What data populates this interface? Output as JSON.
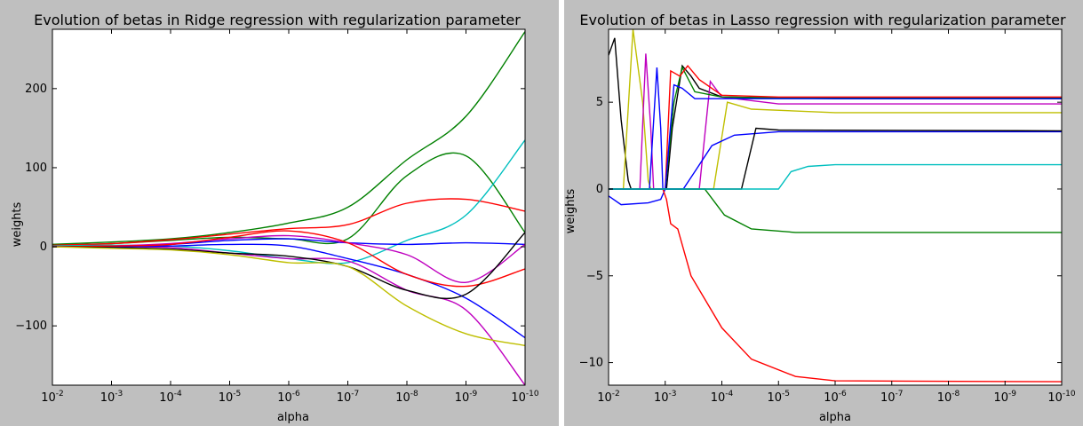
{
  "chart_data": [
    {
      "type": "line",
      "title": "Evolution of betas in Ridge regression with regularization parameter",
      "xlabel": "alpha",
      "ylabel": "weights",
      "xscale": "log",
      "xaxis_direction": "reversed",
      "xlim": [
        0.01,
        1e-10
      ],
      "ylim": [
        -175,
        275
      ],
      "xticks": [
        0.01,
        0.001,
        0.0001,
        1e-05,
        1e-06,
        1e-07,
        1e-08,
        1e-09,
        1e-10
      ],
      "xtick_exponents": [
        "-2",
        "-3",
        "-4",
        "-5",
        "-6",
        "-7",
        "-8",
        "-9",
        "-10"
      ],
      "yticks": [
        -100,
        0,
        100,
        200
      ],
      "ytick_labels": [
        "−100",
        "0",
        "100",
        "200"
      ],
      "grid": false,
      "legend": "none",
      "x": [
        0.01,
        0.001,
        0.0001,
        1e-05,
        1e-06,
        1e-07,
        1e-08,
        1e-09,
        1e-10
      ],
      "series": [
        {
          "color": "#008000",
          "values": [
            3,
            6,
            10,
            18,
            30,
            50,
            110,
            165,
            272
          ]
        },
        {
          "color": "#008000",
          "values": [
            2,
            4,
            8,
            12,
            10,
            10,
            90,
            115,
            18
          ]
        },
        {
          "color": "#ff0000",
          "values": [
            2,
            4,
            9,
            16,
            23,
            28,
            55,
            60,
            45
          ]
        },
        {
          "color": "#00bfbf",
          "values": [
            1,
            2,
            1,
            -5,
            -15,
            -20,
            8,
            40,
            135
          ]
        },
        {
          "color": "#0000ff",
          "values": [
            0,
            1,
            3,
            8,
            10,
            5,
            3,
            5,
            3
          ]
        },
        {
          "color": "#bf00bf",
          "values": [
            0,
            0,
            -1,
            -8,
            -15,
            -18,
            -55,
            -80,
            -175
          ]
        },
        {
          "color": "#0000ff",
          "values": [
            0,
            0,
            1,
            3,
            1,
            -15,
            -35,
            -65,
            -115
          ]
        },
        {
          "color": "#bf00bf",
          "values": [
            0,
            1,
            4,
            10,
            14,
            5,
            -10,
            -45,
            3
          ]
        },
        {
          "color": "#ff0000",
          "values": [
            0,
            1,
            3,
            12,
            20,
            5,
            -35,
            -50,
            -28
          ]
        },
        {
          "color": "#000000",
          "values": [
            0,
            -1,
            -3,
            -8,
            -12,
            -25,
            -55,
            -60,
            18
          ]
        },
        {
          "color": "#bfbf00",
          "values": [
            0,
            -2,
            -4,
            -10,
            -20,
            -25,
            -75,
            -110,
            -125
          ]
        }
      ]
    },
    {
      "type": "line",
      "title": "Evolution of betas in Lasso regression with regularization parameter",
      "xlabel": "alpha",
      "ylabel": "weights",
      "xscale": "log",
      "xaxis_direction": "reversed",
      "xlim": [
        0.01,
        1e-10
      ],
      "ylim": [
        -11.3,
        9.2
      ],
      "xticks": [
        0.01,
        0.001,
        0.0001,
        1e-05,
        1e-06,
        1e-07,
        1e-08,
        1e-09,
        1e-10
      ],
      "xtick_exponents": [
        "-2",
        "-3",
        "-4",
        "-5",
        "-6",
        "-7",
        "-8",
        "-9",
        "-10"
      ],
      "yticks": [
        -10,
        -5,
        0,
        5
      ],
      "ytick_labels": [
        "−10",
        "−5",
        "0",
        "5"
      ],
      "grid": false,
      "legend": "none",
      "series": [
        {
          "color": "#000000",
          "points": [
            [
              0.01,
              7.7
            ],
            [
              0.0078,
              8.7
            ],
            [
              0.006,
              4
            ],
            [
              0.0045,
              0.5
            ],
            [
              0.004,
              0
            ],
            [
              0.00095,
              0
            ],
            [
              0.00075,
              3.5
            ],
            [
              0.0005,
              7.1
            ],
            [
              0.00035,
              6.5
            ],
            [
              0.00025,
              5.8
            ],
            [
              0.0001,
              5.3
            ],
            [
              1e-06,
              5.2
            ],
            [
              1e-10,
              5.2
            ]
          ]
        },
        {
          "color": "#bfbf00",
          "points": [
            [
              0.01,
              0
            ],
            [
              0.0055,
              0
            ],
            [
              0.0037,
              9.2
            ],
            [
              0.0025,
              5
            ],
            [
              0.002,
              0.5
            ],
            [
              0.0018,
              0
            ],
            [
              0.00014,
              0
            ],
            [
              0.0001,
              3
            ],
            [
              8e-05,
              5
            ],
            [
              3e-05,
              4.6
            ],
            [
              1e-06,
              4.4
            ],
            [
              1e-10,
              4.4
            ]
          ]
        },
        {
          "color": "#bf00bf",
          "points": [
            [
              0.01,
              0
            ],
            [
              0.0028,
              0
            ],
            [
              0.0022,
              7.8
            ],
            [
              0.0018,
              3.5
            ],
            [
              0.0016,
              0
            ],
            [
              0.00025,
              0
            ],
            [
              0.00016,
              6.2
            ],
            [
              0.0001,
              5.3
            ],
            [
              1e-05,
              4.9
            ],
            [
              1e-10,
              4.9
            ]
          ]
        },
        {
          "color": "#0000ff",
          "points": [
            [
              0.01,
              0
            ],
            [
              0.0019,
              0
            ],
            [
              0.0014,
              7
            ],
            [
              0.0012,
              3.5
            ],
            [
              0.0011,
              0
            ],
            [
              0.01,
              0
            ]
          ]
        },
        {
          "color": "#008000",
          "points": [
            [
              0.01,
              0
            ],
            [
              0.001,
              0
            ],
            [
              0.0007,
              5
            ],
            [
              0.0005,
              7
            ],
            [
              0.0003,
              5.6
            ],
            [
              0.0001,
              5.3
            ],
            [
              1e-05,
              5.25
            ],
            [
              1e-10,
              5.25
            ]
          ]
        },
        {
          "color": "#ff0000",
          "points": [
            [
              0.01,
              0
            ],
            [
              0.001,
              0
            ],
            [
              0.0008,
              6.8
            ],
            [
              0.00055,
              6.5
            ],
            [
              0.0004,
              7.1
            ],
            [
              0.00025,
              6.3
            ],
            [
              0.0001,
              5.4
            ],
            [
              1e-05,
              5.3
            ],
            [
              1e-10,
              5.3
            ]
          ]
        },
        {
          "color": "#0000ff",
          "points": [
            [
              0.01,
              -0.4
            ],
            [
              0.006,
              -0.9
            ],
            [
              0.002,
              -0.8
            ],
            [
              0.0012,
              -0.6
            ],
            [
              0.001,
              0
            ],
            [
              0.0007,
              6
            ],
            [
              0.0005,
              5.8
            ],
            [
              0.0003,
              5.2
            ],
            [
              0.0001,
              5.2
            ],
            [
              1e-10,
              5.2
            ]
          ]
        },
        {
          "color": "#008000",
          "points": [
            [
              0.01,
              0
            ],
            [
              0.0002,
              0
            ],
            [
              9e-05,
              -1.5
            ],
            [
              3e-05,
              -2.3
            ],
            [
              5e-06,
              -2.5
            ],
            [
              1e-10,
              -2.5
            ]
          ]
        },
        {
          "color": "#ff0000",
          "points": [
            [
              0.01,
              0
            ],
            [
              0.0011,
              0
            ],
            [
              0.00095,
              -0.6
            ],
            [
              0.0008,
              -2
            ],
            [
              0.0006,
              -2.3
            ],
            [
              0.00035,
              -5
            ],
            [
              0.0001,
              -8
            ],
            [
              3e-05,
              -9.8
            ],
            [
              5e-06,
              -10.8
            ],
            [
              1e-06,
              -11.05
            ],
            [
              1e-10,
              -11.1
            ]
          ]
        },
        {
          "color": "#0000ff",
          "points": [
            [
              0.01,
              0
            ],
            [
              0.00048,
              0
            ],
            [
              0.0003,
              1
            ],
            [
              0.00015,
              2.5
            ],
            [
              6e-05,
              3.1
            ],
            [
              1e-05,
              3.3
            ],
            [
              1e-10,
              3.3
            ]
          ]
        },
        {
          "color": "#000000",
          "points": [
            [
              0.01,
              0
            ],
            [
              4.5e-05,
              0
            ],
            [
              2.5e-05,
              3.5
            ],
            [
              1e-05,
              3.4
            ],
            [
              1e-10,
              3.35
            ]
          ]
        },
        {
          "color": "#00bfbf",
          "points": [
            [
              0.01,
              0
            ],
            [
              1e-05,
              0
            ],
            [
              6e-06,
              1
            ],
            [
              3e-06,
              1.3
            ],
            [
              1e-06,
              1.4
            ],
            [
              1e-10,
              1.4
            ]
          ]
        }
      ]
    }
  ]
}
